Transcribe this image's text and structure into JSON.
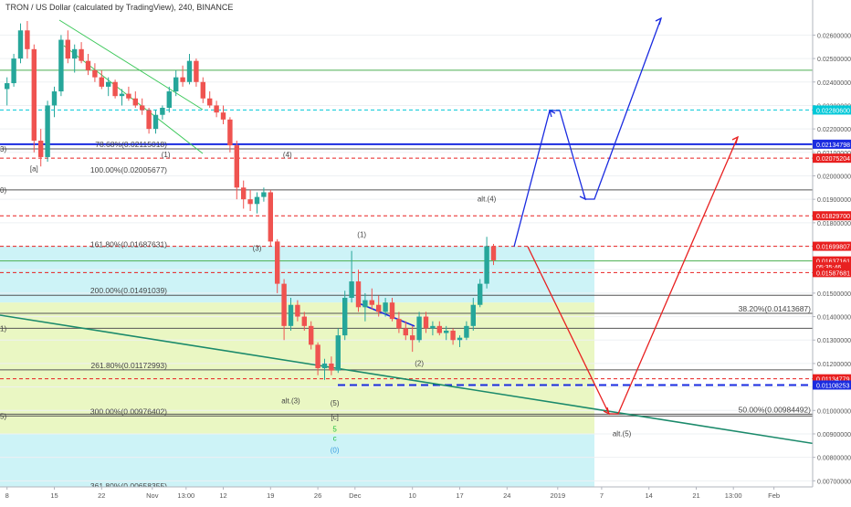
{
  "header": {
    "title": "TRON / US Dollar (calculated by TradingView), 240, BINANCE"
  },
  "chart_data": {
    "type": "candlestick",
    "title": "TRON / US Dollar (calculated by TradingView), 240, BINANCE",
    "ylim": [
      0.0066,
      0.027
    ],
    "y_ticks": [
      "0.02600000",
      "0.02500000",
      "0.02400000",
      "0.02300000",
      "0.02200000",
      "0.02100000",
      "0.02000000",
      "0.01900000",
      "0.01800000",
      "0.01700000",
      "0.01600000",
      "0.01500000",
      "0.01400000",
      "0.01300000",
      "0.01200000",
      "0.01100000",
      "0.01000000",
      "0.00900000",
      "0.00800000",
      "0.00700000"
    ],
    "x_ticks": [
      {
        "label": "8",
        "x": 0.5
      },
      {
        "label": "15",
        "x": 7.5
      },
      {
        "label": "22",
        "x": 14.5
      },
      {
        "label": "Nov",
        "x": 22
      },
      {
        "label": "13:00",
        "x": 27
      },
      {
        "label": "12",
        "x": 32.5
      },
      {
        "label": "19",
        "x": 39.5
      },
      {
        "label": "26",
        "x": 46.5
      },
      {
        "label": "Dec",
        "x": 52
      },
      {
        "label": "10",
        "x": 60.5
      },
      {
        "label": "17",
        "x": 67.5
      },
      {
        "label": "24",
        "x": 74.5
      },
      {
        "label": "2019",
        "x": 82
      },
      {
        "label": "7",
        "x": 88.5
      },
      {
        "label": "14",
        "x": 95.5
      },
      {
        "label": "21",
        "x": 102.5
      },
      {
        "label": "13:00",
        "x": 108
      },
      {
        "label": "Feb",
        "x": 114
      }
    ],
    "price_tags": [
      {
        "value": "0.02280600",
        "price": 0.022806,
        "color": "#00c8d8"
      },
      {
        "value": "0.02134798",
        "price": 0.021348,
        "color": "#1a2be0"
      },
      {
        "value": "0.02075204",
        "price": 0.020752,
        "color": "#e82020"
      },
      {
        "value": "0.01829700",
        "price": 0.018297,
        "color": "#e82020"
      },
      {
        "value": "0.01699807",
        "price": 0.016998,
        "color": "#e82020"
      },
      {
        "value": "0.01637161",
        "price": 0.016372,
        "color": "#e82020"
      },
      {
        "value": "05:35:46",
        "price": 0.01612,
        "color": "#e82020"
      },
      {
        "value": "0.01587681",
        "price": 0.015877,
        "color": "#e82020"
      },
      {
        "value": "0.01134779",
        "price": 0.011348,
        "color": "#e82020"
      },
      {
        "value": "0.01108253",
        "price": 0.011083,
        "color": "#1a2be0"
      }
    ],
    "fib_levels": [
      {
        "label": "78.68%(0.02115018)",
        "price": 0.02115
      },
      {
        "label": "100.00%(0.02005677)",
        "price": 0.020057
      },
      {
        "label": "161.80%(0.01687631)",
        "price": 0.016876
      },
      {
        "label": "200.00%(0.01491039)",
        "price": 0.01491
      },
      {
        "label": "261.80%(0.01172993)",
        "price": 0.01173
      },
      {
        "label": "300.00%(0.00976402)",
        "price": 0.009764
      },
      {
        "label": "361.80%(0.00658355)",
        "price": 0.006584
      }
    ],
    "right_fib_levels": [
      {
        "label": "38.20%(0.01413687)",
        "price": 0.014137
      },
      {
        "label": "50.00%(0.00984492)",
        "price": 0.009845
      }
    ],
    "wave_labels": [
      {
        "text": "[a]",
        "x": 4.5,
        "price": 0.0202,
        "color": "#444444"
      },
      {
        "text": "(1)",
        "x": 24,
        "price": 0.0208,
        "color": "#444444"
      },
      {
        "text": "(4)",
        "x": 42,
        "price": 0.0208,
        "color": "#444444"
      },
      {
        "text": "(3)",
        "x": 37.5,
        "price": 0.0168,
        "color": "#444444"
      },
      {
        "text": "(1)",
        "x": 53,
        "price": 0.0174,
        "color": "#444444"
      },
      {
        "text": "alt.(4)",
        "x": 71.5,
        "price": 0.0189,
        "color": "#444444"
      },
      {
        "text": "(2)",
        "x": 61.5,
        "price": 0.0119,
        "color": "#444444"
      },
      {
        "text": "alt.(3)",
        "x": 42.5,
        "price": 0.0103,
        "color": "#444444"
      },
      {
        "text": "(5)",
        "x": 49,
        "price": 0.0102,
        "color": "#444444"
      },
      {
        "text": "[c]",
        "x": 49,
        "price": 0.0096,
        "color": "#444444"
      },
      {
        "text": "5",
        "x": 49,
        "price": 0.0091,
        "color": "#1fbf3f"
      },
      {
        "text": "c",
        "x": 49,
        "price": 0.0087,
        "color": "#1fbf3f"
      },
      {
        "text": "(0)",
        "x": 49,
        "price": 0.0082,
        "color": "#3a9ce0"
      },
      {
        "text": "alt.(5)",
        "x": 91.5,
        "price": 0.0089,
        "color": "#444444"
      }
    ],
    "left_edge_labels": [
      {
        "text": "3)",
        "price": 0.02115
      },
      {
        "text": "0)",
        "price": 0.0194
      },
      {
        "text": "1)",
        "price": 0.0135
      },
      {
        "text": "5)",
        "price": 0.00976
      }
    ],
    "candles": [
      [
        0,
        0.0237,
        0.0242,
        0.023,
        0.02395
      ],
      [
        1,
        0.02395,
        0.0252,
        0.0238,
        0.025
      ],
      [
        2,
        0.025,
        0.0265,
        0.0248,
        0.0262
      ],
      [
        3,
        0.0262,
        0.0266,
        0.025,
        0.0254
      ],
      [
        4,
        0.0254,
        0.0256,
        0.021,
        0.0215
      ],
      [
        5,
        0.0215,
        0.022,
        0.0204,
        0.0208
      ],
      [
        6,
        0.0208,
        0.0232,
        0.0206,
        0.023
      ],
      [
        7,
        0.023,
        0.0238,
        0.0225,
        0.0236
      ],
      [
        8,
        0.0236,
        0.026,
        0.0234,
        0.0258
      ],
      [
        9,
        0.0258,
        0.0262,
        0.0248,
        0.025
      ],
      [
        10,
        0.025,
        0.0256,
        0.0244,
        0.0254
      ],
      [
        11,
        0.0254,
        0.0257,
        0.0248,
        0.0249
      ],
      [
        12,
        0.0249,
        0.0252,
        0.0243,
        0.0245
      ],
      [
        13,
        0.0245,
        0.0248,
        0.024,
        0.0242
      ],
      [
        14,
        0.0242,
        0.0245,
        0.0237,
        0.0238
      ],
      [
        15,
        0.0238,
        0.0242,
        0.0234,
        0.024
      ],
      [
        16,
        0.024,
        0.0241,
        0.0233,
        0.0234
      ],
      [
        17,
        0.0234,
        0.0237,
        0.023,
        0.0235
      ],
      [
        18,
        0.0235,
        0.0238,
        0.0232,
        0.0233
      ],
      [
        19,
        0.0233,
        0.0236,
        0.0229,
        0.023
      ],
      [
        20,
        0.023,
        0.0233,
        0.0226,
        0.0228
      ],
      [
        21,
        0.0228,
        0.0229,
        0.0218,
        0.022
      ],
      [
        22,
        0.022,
        0.0228,
        0.0218,
        0.0226
      ],
      [
        23,
        0.0226,
        0.023,
        0.0224,
        0.0229
      ],
      [
        24,
        0.0229,
        0.0238,
        0.0227,
        0.0236
      ],
      [
        25,
        0.0236,
        0.0245,
        0.0234,
        0.0242
      ],
      [
        26,
        0.0242,
        0.0247,
        0.0238,
        0.024
      ],
      [
        27,
        0.024,
        0.0252,
        0.0239,
        0.0249
      ],
      [
        28,
        0.0249,
        0.025,
        0.0238,
        0.024
      ],
      [
        29,
        0.024,
        0.0242,
        0.0231,
        0.0233
      ],
      [
        30,
        0.0233,
        0.0236,
        0.0229,
        0.023
      ],
      [
        31,
        0.023,
        0.0232,
        0.0225,
        0.0227
      ],
      [
        32,
        0.0227,
        0.023,
        0.0222,
        0.0224
      ],
      [
        33,
        0.0224,
        0.0225,
        0.021,
        0.0213
      ],
      [
        34,
        0.0213,
        0.0215,
        0.019,
        0.0195
      ],
      [
        35,
        0.0195,
        0.0198,
        0.0186,
        0.019
      ],
      [
        36,
        0.019,
        0.0194,
        0.0185,
        0.0188
      ],
      [
        37,
        0.0188,
        0.0193,
        0.0184,
        0.0191
      ],
      [
        38,
        0.0191,
        0.0195,
        0.0189,
        0.0193
      ],
      [
        39,
        0.0193,
        0.0194,
        0.017,
        0.0172
      ],
      [
        40,
        0.0172,
        0.0173,
        0.015,
        0.0154
      ],
      [
        41,
        0.0154,
        0.0156,
        0.013,
        0.0136
      ],
      [
        42,
        0.0136,
        0.0148,
        0.0134,
        0.0145
      ],
      [
        43,
        0.0145,
        0.0147,
        0.0138,
        0.014
      ],
      [
        44,
        0.014,
        0.0142,
        0.0134,
        0.0136
      ],
      [
        45,
        0.0136,
        0.0138,
        0.0126,
        0.0128
      ],
      [
        46,
        0.0128,
        0.0129,
        0.0115,
        0.0118
      ],
      [
        47,
        0.0118,
        0.0122,
        0.0113,
        0.012
      ],
      [
        48,
        0.012,
        0.0123,
        0.0115,
        0.0117
      ],
      [
        49,
        0.0117,
        0.0135,
        0.0116,
        0.0132
      ],
      [
        50,
        0.0132,
        0.0151,
        0.013,
        0.0148
      ],
      [
        51,
        0.0148,
        0.0168,
        0.0146,
        0.0155
      ],
      [
        52,
        0.0155,
        0.016,
        0.0142,
        0.0144
      ],
      [
        53,
        0.0144,
        0.015,
        0.0138,
        0.0147
      ],
      [
        54,
        0.0147,
        0.0152,
        0.0143,
        0.0145
      ],
      [
        55,
        0.0145,
        0.0149,
        0.014,
        0.0142
      ],
      [
        56,
        0.0142,
        0.0148,
        0.014,
        0.0146
      ],
      [
        57,
        0.0146,
        0.0148,
        0.0138,
        0.0139
      ],
      [
        58,
        0.0139,
        0.0142,
        0.0133,
        0.0135
      ],
      [
        59,
        0.0135,
        0.0138,
        0.013,
        0.0132
      ],
      [
        60,
        0.0132,
        0.0136,
        0.0125,
        0.013
      ],
      [
        61,
        0.013,
        0.0142,
        0.0129,
        0.014
      ],
      [
        62,
        0.014,
        0.0142,
        0.0133,
        0.0135
      ],
      [
        63,
        0.0135,
        0.0138,
        0.0132,
        0.0136
      ],
      [
        64,
        0.0136,
        0.0138,
        0.0132,
        0.0133
      ],
      [
        65,
        0.0133,
        0.0136,
        0.013,
        0.0134
      ],
      [
        66,
        0.0134,
        0.0135,
        0.0128,
        0.013
      ],
      [
        67,
        0.013,
        0.0132,
        0.0127,
        0.0131
      ],
      [
        68,
        0.0131,
        0.0138,
        0.013,
        0.0136
      ],
      [
        69,
        0.0136,
        0.0148,
        0.0134,
        0.0145
      ],
      [
        70,
        0.0145,
        0.0156,
        0.0144,
        0.0154
      ],
      [
        71,
        0.0154,
        0.0174,
        0.0152,
        0.017
      ],
      [
        72,
        0.017,
        0.0171,
        0.0162,
        0.0164
      ]
    ]
  }
}
